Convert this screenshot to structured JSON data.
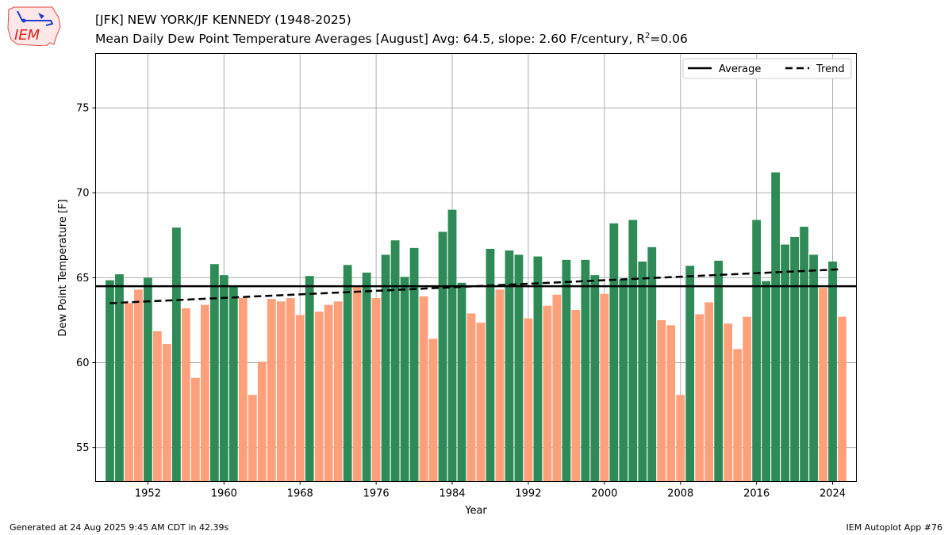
{
  "header": {
    "title": "[JFK] NEW YORK/JF KENNEDY (1948-2025)",
    "subtitle_prefix": "Mean Daily Dew Point Temperature Averages [August]  Avg: 64.5, slope: 2.60 F/century, R",
    "subtitle_sup": "2",
    "subtitle_suffix": "=0.06"
  },
  "logo": {
    "text": "IEM"
  },
  "footer": {
    "generated": "Generated at 24 Aug 2025 9:45 AM CDT in 42.39s",
    "app": "IEM Autoplot App #76"
  },
  "colors": {
    "above": "#2e8b57",
    "below": "#ffa07a",
    "average": "#000000",
    "trend": "#000000",
    "grid": "#b0b0b0"
  },
  "chart_data": {
    "type": "bar",
    "xlabel": "Year",
    "ylabel": "Dew Point Temperature [F]",
    "xlim": [
      1946.5,
      2026.5
    ],
    "ylim": [
      53.0,
      78.2
    ],
    "xticks": [
      1952,
      1960,
      1968,
      1976,
      1984,
      1992,
      2000,
      2008,
      2016,
      2024
    ],
    "yticks": [
      55,
      60,
      65,
      70,
      75
    ],
    "grid": true,
    "legend_position": "top-right",
    "legend": [
      "Average",
      "Trend"
    ],
    "average": 64.5,
    "trend": {
      "x": [
        1948,
        2025
      ],
      "y": [
        63.5,
        65.5
      ]
    },
    "years": [
      1948,
      1949,
      1950,
      1951,
      1952,
      1953,
      1954,
      1955,
      1956,
      1957,
      1958,
      1959,
      1960,
      1961,
      1962,
      1963,
      1964,
      1965,
      1966,
      1967,
      1968,
      1969,
      1970,
      1971,
      1972,
      1973,
      1974,
      1975,
      1976,
      1977,
      1978,
      1979,
      1980,
      1981,
      1982,
      1983,
      1984,
      1985,
      1986,
      1987,
      1988,
      1989,
      1990,
      1991,
      1992,
      1993,
      1994,
      1995,
      1996,
      1997,
      1998,
      1999,
      2000,
      2001,
      2002,
      2003,
      2004,
      2005,
      2006,
      2007,
      2008,
      2009,
      2010,
      2011,
      2012,
      2013,
      2014,
      2015,
      2016,
      2017,
      2018,
      2019,
      2020,
      2021,
      2022,
      2023,
      2024,
      2025
    ],
    "values": [
      64.85,
      65.2,
      63.5,
      64.3,
      65.0,
      61.85,
      61.1,
      67.95,
      63.2,
      59.1,
      63.4,
      65.8,
      65.15,
      64.5,
      63.8,
      58.1,
      60.05,
      63.75,
      63.6,
      63.8,
      62.8,
      65.1,
      63.0,
      63.4,
      63.6,
      65.75,
      64.45,
      65.3,
      63.8,
      66.35,
      67.2,
      65.05,
      66.75,
      63.9,
      61.4,
      67.7,
      69.0,
      64.7,
      62.9,
      62.35,
      66.7,
      64.3,
      66.6,
      66.35,
      62.6,
      66.25,
      63.35,
      64.0,
      66.05,
      63.1,
      66.05,
      65.15,
      64.05,
      68.2,
      64.9,
      68.4,
      65.95,
      66.8,
      62.5,
      62.2,
      58.1,
      65.7,
      62.85,
      63.55,
      66.0,
      62.3,
      60.8,
      62.7,
      68.4,
      64.8,
      71.2,
      66.95,
      67.4,
      68.0,
      66.35,
      64.4,
      65.95,
      62.7
    ]
  }
}
